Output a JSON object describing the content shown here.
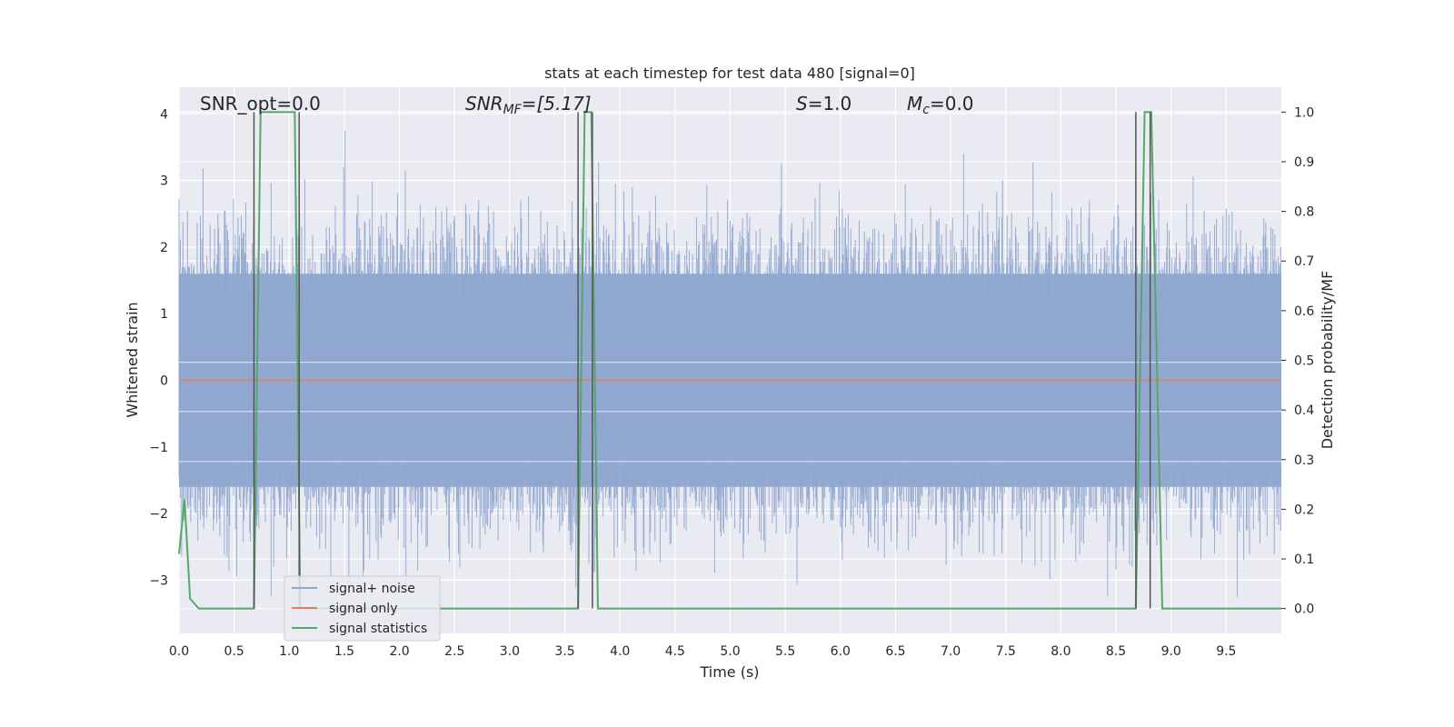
{
  "chart_data": {
    "type": "line",
    "title": "stats at each timestep for test data 480 [signal=0]",
    "xlabel": "Time (s)",
    "ylabel": "Whitened strain",
    "y2label": "Detection probability/MF",
    "xlim": [
      0.0,
      10.0
    ],
    "ylim": [
      -3.8,
      4.4
    ],
    "y2lim": [
      -0.05,
      1.05
    ],
    "xticks": [
      "0.0",
      "0.5",
      "1.0",
      "1.5",
      "2.0",
      "2.5",
      "3.0",
      "3.5",
      "4.0",
      "4.5",
      "5.0",
      "5.5",
      "6.0",
      "6.5",
      "7.0",
      "7.5",
      "8.0",
      "8.5",
      "9.0",
      "9.5"
    ],
    "yticks": [
      "−3",
      "−2",
      "−1",
      "0",
      "1",
      "2",
      "3",
      "4"
    ],
    "y2ticks": [
      "0.0",
      "0.1",
      "0.2",
      "0.3",
      "0.4",
      "0.5",
      "0.6",
      "0.7",
      "0.8",
      "0.9",
      "1.0"
    ],
    "grid": true,
    "legend_position": "lower-left",
    "annotations": {
      "snr_opt": "SNR_opt=0.0",
      "snr_mf_prefix": "SNR",
      "snr_mf_sub": "MF",
      "snr_mf_value": "=[5.17]",
      "s_var": "S",
      "s_value": "=1.0",
      "mc_var": "M",
      "mc_sub": "c",
      "mc_value": "=0.0"
    },
    "series": [
      {
        "name": "signal+ noise",
        "color": "#8fa6cf",
        "style": "noise band, approx. -2 to 2 with spikes up to 4 and down to -3.2"
      },
      {
        "name": "signal only",
        "color": "#dd8452",
        "x": [
          0.0,
          10.0
        ],
        "y": [
          0.0,
          0.0
        ]
      },
      {
        "name": "signal statistics",
        "color": "#55a868",
        "axis": "right",
        "x": [
          0.0,
          0.05,
          0.1,
          0.12,
          0.18,
          0.68,
          0.74,
          1.05,
          1.1,
          3.62,
          3.68,
          3.74,
          3.8,
          8.68,
          8.76,
          8.82,
          8.92,
          10.0
        ],
        "y": [
          0.11,
          0.22,
          0.02,
          0.015,
          0.0,
          0.0,
          1.0,
          1.0,
          0.0,
          0.0,
          1.0,
          1.0,
          0.0,
          0.0,
          1.0,
          1.0,
          0.0,
          0.0
        ]
      }
    ],
    "vlines": {
      "color": "#555555",
      "x": [
        0.68,
        1.09,
        3.62,
        3.75,
        8.68,
        8.81
      ]
    }
  }
}
